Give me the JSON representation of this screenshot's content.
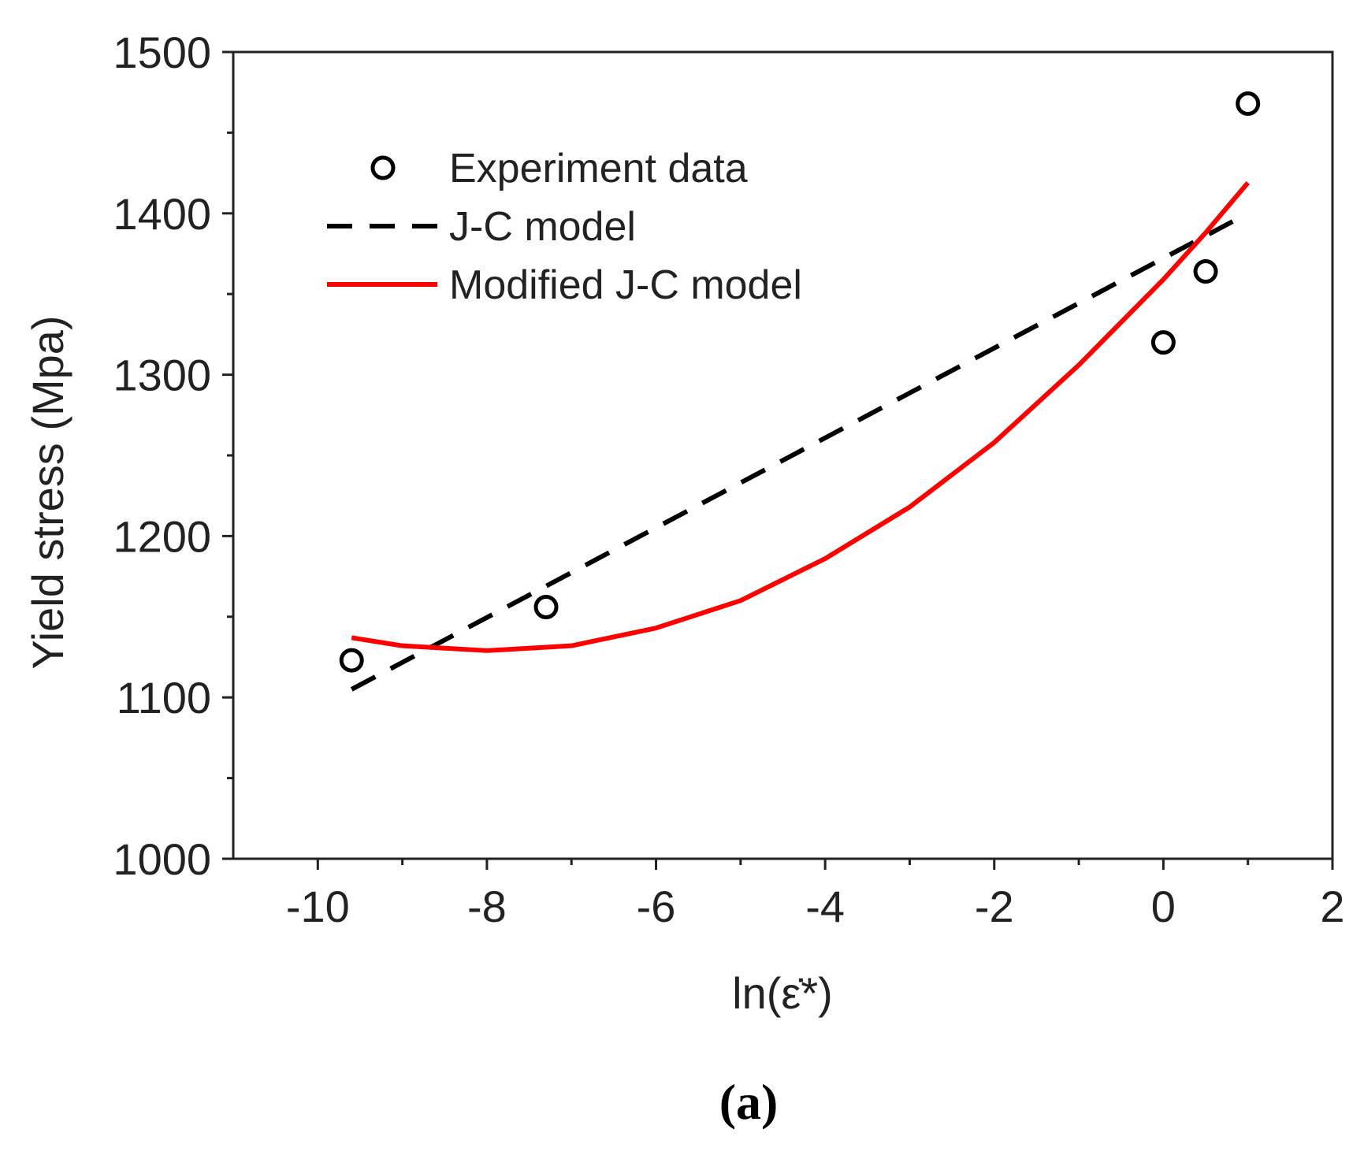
{
  "chart_data": {
    "type": "scatter",
    "xlabel": "ln(ε̇*)",
    "ylabel": "Yield stress (Mpa)",
    "xlim": [
      -11,
      2
    ],
    "ylim": [
      1000,
      1500
    ],
    "x_ticks": [
      -10,
      -8,
      -6,
      -4,
      -2,
      0,
      2
    ],
    "y_ticks": [
      1000,
      1100,
      1200,
      1300,
      1400,
      1500
    ],
    "x_tick_labels": [
      "-10",
      "-8",
      "-6",
      "-4",
      "-2",
      "0",
      "2"
    ],
    "y_tick_labels": [
      "1000",
      "1100",
      "1200",
      "1300",
      "1400",
      "1500"
    ],
    "grid": false,
    "legend_position": "top-left",
    "series": [
      {
        "name": "Experiment data",
        "kind": "scatter",
        "marker": "open-circle",
        "color": "#000000",
        "x": [
          -9.6,
          -7.3,
          0.0,
          0.5,
          1.0
        ],
        "y": [
          1123,
          1156,
          1320,
          1364,
          1468
        ]
      },
      {
        "name": "J-C model",
        "kind": "line",
        "style": "dashed",
        "color": "#000000",
        "x": [
          -9.6,
          1.0
        ],
        "y": [
          1105,
          1400
        ]
      },
      {
        "name": "Modified J-C model",
        "kind": "line",
        "style": "solid",
        "color": "#ff0000",
        "x": [
          -9.6,
          -9,
          -8,
          -7,
          -6,
          -5,
          -4,
          -3,
          -2,
          -1,
          0,
          0.5,
          1.0
        ],
        "y": [
          1137,
          1132,
          1129,
          1132,
          1143,
          1160,
          1186,
          1218,
          1258,
          1306,
          1359,
          1388,
          1419
        ]
      }
    ],
    "annotations": [
      "(a)"
    ]
  }
}
